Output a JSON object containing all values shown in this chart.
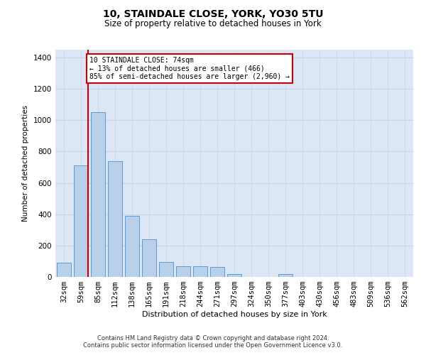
{
  "title": "10, STAINDALE CLOSE, YORK, YO30 5TU",
  "subtitle": "Size of property relative to detached houses in York",
  "xlabel": "Distribution of detached houses by size in York",
  "ylabel": "Number of detached properties",
  "footnote1": "Contains HM Land Registry data © Crown copyright and database right 2024.",
  "footnote2": "Contains public sector information licensed under the Open Government Licence v3.0.",
  "categories": [
    "32sqm",
    "59sqm",
    "85sqm",
    "112sqm",
    "138sqm",
    "165sqm",
    "191sqm",
    "218sqm",
    "244sqm",
    "271sqm",
    "297sqm",
    "324sqm",
    "350sqm",
    "377sqm",
    "403sqm",
    "430sqm",
    "456sqm",
    "483sqm",
    "509sqm",
    "536sqm",
    "562sqm"
  ],
  "values": [
    90,
    710,
    1050,
    740,
    390,
    240,
    95,
    70,
    70,
    65,
    20,
    0,
    0,
    20,
    0,
    0,
    0,
    0,
    0,
    0,
    0
  ],
  "bar_color": "#b8d0ea",
  "bar_edge_color": "#5b9bd5",
  "grid_color": "#c8d4e8",
  "background_color": "#dce6f4",
  "vline_color": "#cc0000",
  "vline_x": 1.43,
  "annotation_line1": "10 STAINDALE CLOSE: 74sqm",
  "annotation_line2": "← 13% of detached houses are smaller (466)",
  "annotation_line3": "85% of semi-detached houses are larger (2,960) →",
  "ann_box_edge": "#cc0000",
  "ylim_max": 1450,
  "yticks": [
    0,
    200,
    400,
    600,
    800,
    1000,
    1200,
    1400
  ]
}
